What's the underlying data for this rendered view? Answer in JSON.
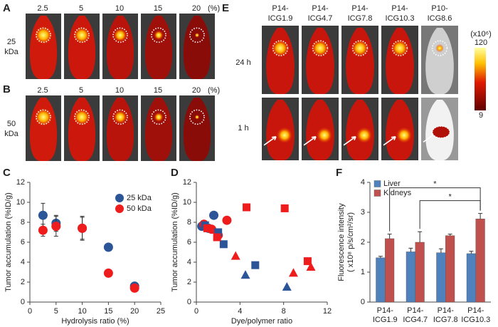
{
  "panel_labels": [
    "A",
    "B",
    "E",
    "C",
    "D",
    "F"
  ],
  "imaging": {
    "A": {
      "columns": [
        "2.5",
        "5",
        "10",
        "15",
        "20"
      ],
      "unit": "(%)",
      "row_label": [
        "25",
        "kDa"
      ]
    },
    "B": {
      "columns": [
        "2.5",
        "5",
        "10",
        "15",
        "20"
      ],
      "unit": "(%)",
      "row_label": [
        "50",
        "kDa"
      ]
    },
    "E": {
      "columns": [
        [
          "P14-",
          "ICG1.9"
        ],
        [
          "P14-",
          "ICG4.7"
        ],
        [
          "P14-",
          "ICG7.8"
        ],
        [
          "P14-",
          "ICG10.3"
        ],
        [
          "P10-",
          "ICG8.6"
        ]
      ],
      "rows": [
        "24 h",
        "1 h"
      ],
      "colorbar": {
        "unit": "(x10⁶)",
        "max": 120,
        "min": 9
      }
    }
  },
  "chart_data": [
    {
      "type": "scatter",
      "ylabel": "Tumor accumulation (%ID/g)",
      "xlabel": "Hydrolysis ratio (%)",
      "xlim": [
        0,
        25
      ],
      "xticks": [
        0,
        5,
        10,
        15,
        20,
        25
      ],
      "ylim": [
        0,
        12
      ],
      "yticks": [
        0,
        2,
        4,
        6,
        8,
        10,
        12
      ],
      "legend": "upper right",
      "series": [
        {
          "name": "25 kDa",
          "color": "#2b5597",
          "marker": "circle",
          "x": [
            2.5,
            5,
            10,
            15,
            20
          ],
          "values": [
            8.7,
            7.9,
            7.4,
            5.5,
            1.6
          ],
          "errors": [
            1.2,
            0.8,
            1.2,
            0.2,
            0.2
          ]
        },
        {
          "name": "50 kDa",
          "color": "#ee1c1c",
          "marker": "circle",
          "x": [
            2.5,
            5,
            10,
            15,
            20
          ],
          "values": [
            7.2,
            7.6,
            7.4,
            2.9,
            1.4
          ],
          "errors": [
            0.6,
            1.0,
            1.1,
            0.2,
            0.2
          ]
        }
      ]
    },
    {
      "type": "scatter",
      "ylabel": "Tumor accumulation (%ID/g)",
      "xlabel": "Dye/polymer ratio",
      "xlim": [
        0,
        12
      ],
      "xticks": [
        0,
        4,
        8,
        12
      ],
      "ylim": [
        0,
        12
      ],
      "yticks": [
        0,
        2,
        4,
        6,
        8,
        10,
        12
      ],
      "series": [
        {
          "color": "#2b5597",
          "marker": "circle",
          "x": [
            0.5,
            1.1,
            1.6
          ],
          "values": [
            7.6,
            7.4,
            8.7
          ]
        },
        {
          "color": "#ee1c1c",
          "marker": "circle",
          "x": [
            0.7,
            1.4,
            2.0,
            2.8
          ],
          "values": [
            7.8,
            7.3,
            6.7,
            8.2
          ]
        },
        {
          "color": "#2b5597",
          "marker": "square",
          "x": [
            0.8,
            2.0,
            2.5,
            5.4
          ],
          "values": [
            7.7,
            7.0,
            5.8,
            3.7
          ]
        },
        {
          "color": "#ee1c1c",
          "marker": "square",
          "x": [
            1.0,
            1.9,
            4.6,
            8.1,
            10.2
          ],
          "values": [
            7.4,
            6.5,
            9.5,
            9.4,
            4.1
          ]
        },
        {
          "color": "#2b5597",
          "marker": "triangle",
          "x": [
            4.5,
            8.3
          ],
          "values": [
            2.7,
            1.5
          ]
        },
        {
          "color": "#ee1c1c",
          "marker": "triangle",
          "x": [
            3.6,
            8.9,
            10.5
          ],
          "values": [
            4.6,
            2.9,
            3.5
          ]
        }
      ]
    },
    {
      "type": "bar",
      "ylabel": [
        "Fluorescence intensity",
        "( x10⁸ p/s/cm²/sr)"
      ],
      "categories": [
        [
          "P14-",
          "ICG1.9"
        ],
        [
          "P14-",
          "ICG4.7"
        ],
        [
          "P14-",
          "ICG7.8"
        ],
        [
          "P14-",
          "ICG10.3"
        ]
      ],
      "ylim": [
        0,
        4
      ],
      "yticks": [
        0,
        1,
        2,
        3,
        4
      ],
      "legend": "upper left",
      "series": [
        {
          "name": "Liver",
          "color": "#4f81bd",
          "values": [
            1.48,
            1.68,
            1.65,
            1.62
          ],
          "errors": [
            0.05,
            0.12,
            0.13,
            0.08
          ]
        },
        {
          "name": "Kidneys",
          "color": "#c0504d",
          "values": [
            2.12,
            2.0,
            2.22,
            2.78
          ],
          "errors": [
            0.15,
            0.35,
            0.05,
            0.18
          ]
        }
      ],
      "annotations": [
        "*",
        "*"
      ]
    }
  ]
}
